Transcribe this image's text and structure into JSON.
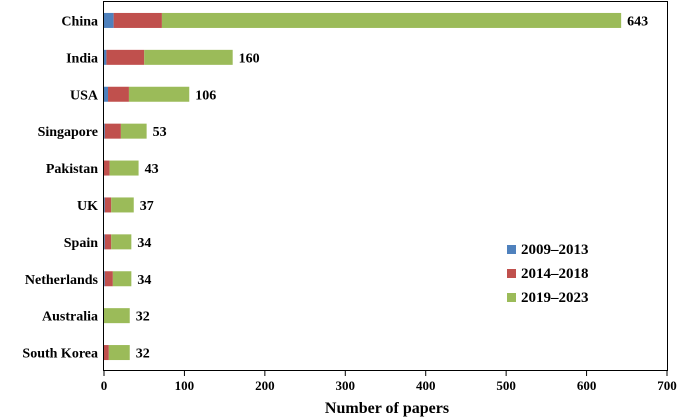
{
  "chart_data": {
    "type": "bar",
    "orientation": "horizontal",
    "stacked": true,
    "categories": [
      "China",
      "India",
      "USA",
      "Singapore",
      "Pakistan",
      "UK",
      "Spain",
      "Netherlands",
      "Australia",
      "South Korea"
    ],
    "series": [
      {
        "name": "2009–2013",
        "color": "#4f81bd",
        "values": [
          12,
          3,
          5,
          1,
          0,
          1,
          1,
          1,
          0,
          0
        ]
      },
      {
        "name": "2014–2018",
        "color": "#c0504d",
        "values": [
          60,
          47,
          26,
          20,
          7,
          8,
          8,
          10,
          0,
          6
        ]
      },
      {
        "name": "2019–2023",
        "color": "#9bbb59",
        "values": [
          571,
          110,
          75,
          32,
          36,
          28,
          25,
          23,
          32,
          26
        ]
      }
    ],
    "totals": [
      "643",
      "160",
      "106",
      "53",
      "43",
      "37",
      "34",
      "34",
      "32",
      "32"
    ],
    "xlabel": "Number of papers",
    "ylabel": "",
    "title": "",
    "xlim": [
      0,
      700
    ],
    "xticks": [
      "0",
      "100",
      "200",
      "300",
      "400",
      "500",
      "600",
      "700"
    ],
    "grid": false,
    "legend_position": "bottom-right"
  }
}
